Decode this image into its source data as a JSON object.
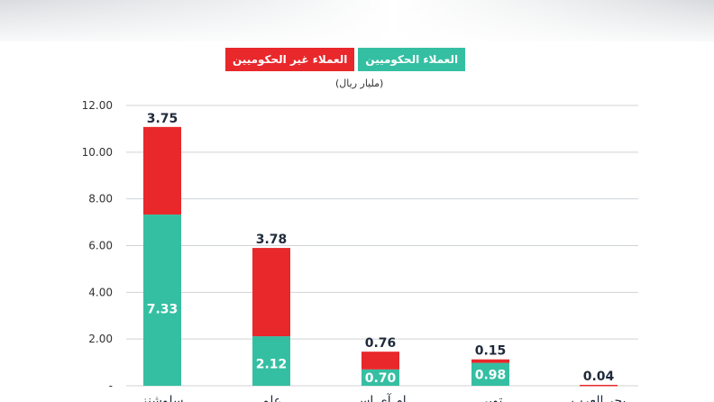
{
  "legend": {
    "non_government": "العملاء غير الحكوميين",
    "government": "العملاء الحكوميين"
  },
  "unit": "(مليار ريال)",
  "colors": {
    "government": "#35bfa2",
    "non_government": "#e8282b",
    "grid": "#cfd3d6"
  },
  "chart_data": {
    "type": "bar",
    "stacked": true,
    "categories": [
      "سلوشنز",
      "علم",
      "إم آي إس",
      "توبي",
      "بحر العرب"
    ],
    "series": [
      {
        "name": "العملاء الحكوميين",
        "values": [
          7.33,
          2.12,
          0.7,
          0.98,
          0.0
        ]
      },
      {
        "name": "العملاء غير الحكوميين",
        "values": [
          3.75,
          3.78,
          0.76,
          0.15,
          0.04
        ]
      }
    ],
    "value_labels": {
      "government": [
        "7.33",
        "2.12",
        "0.70",
        "0.98",
        ""
      ],
      "non_government": [
        "3.75",
        "3.78",
        "0.76",
        "0.15",
        "0.04"
      ]
    },
    "yticks": [
      "-",
      "2.00",
      "4.00",
      "6.00",
      "8.00",
      "10.00",
      "12.00"
    ],
    "ylim": [
      0,
      12
    ],
    "grid": true,
    "legend_position": "top-center"
  }
}
